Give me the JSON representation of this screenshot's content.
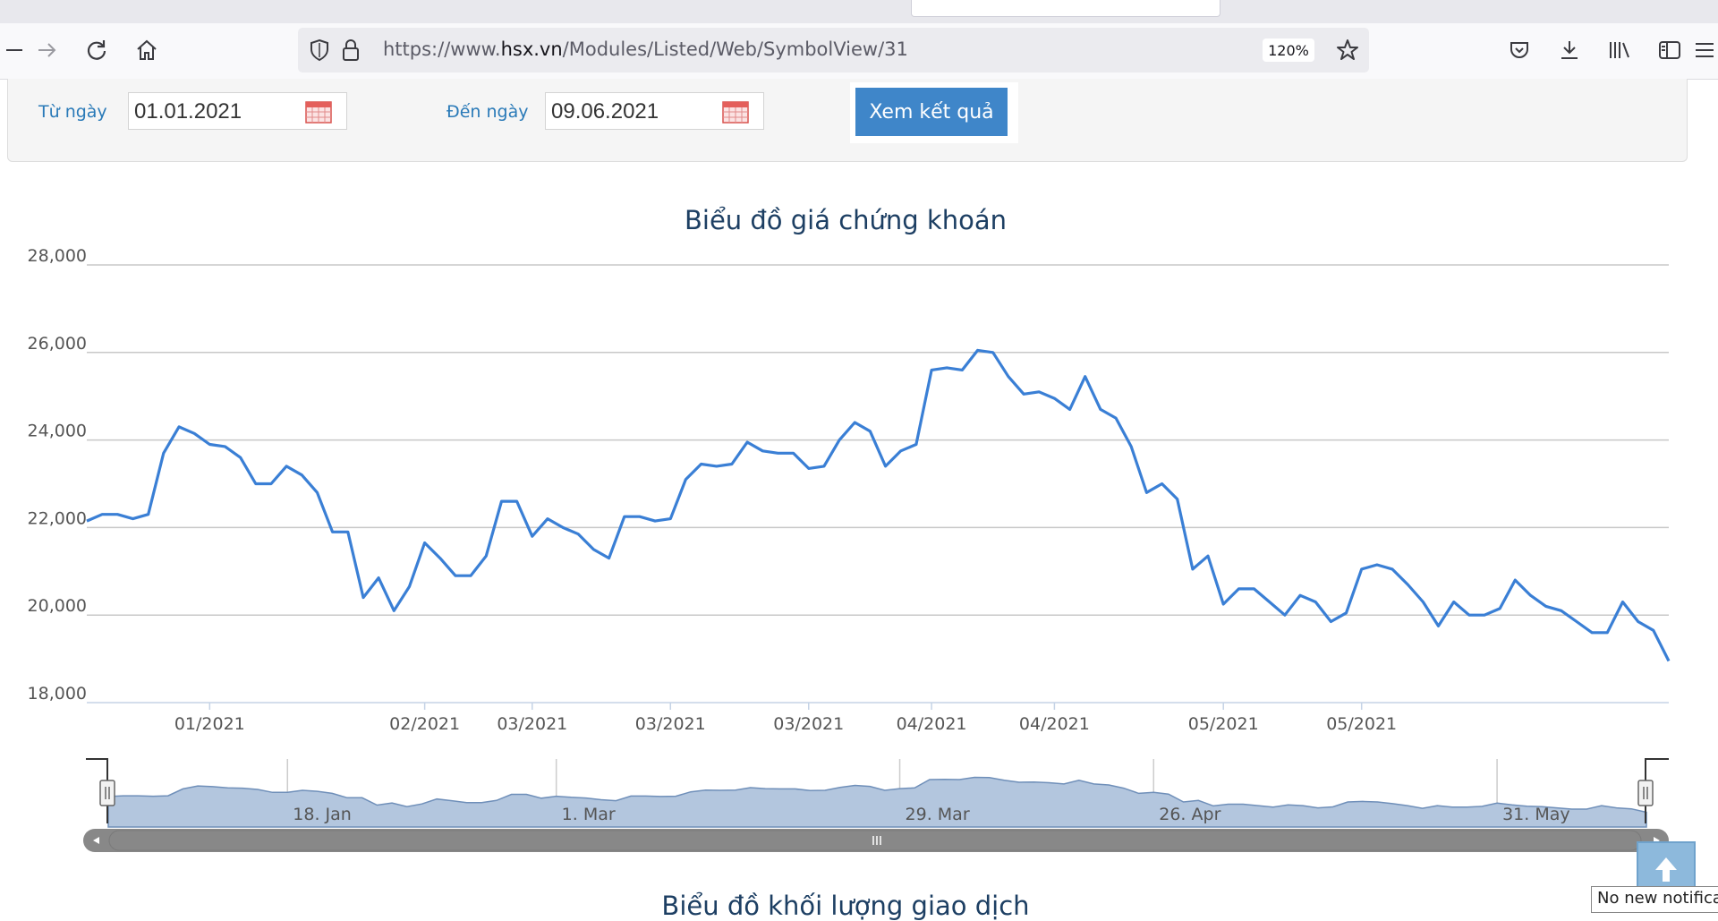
{
  "browser": {
    "url_prefix": "https://www.",
    "url_domain": "hsx.vn",
    "url_path": "/Modules/Listed/Web/SymbolView/31",
    "zoom": "120%",
    "icons": {
      "back": "arrow-left-icon",
      "forward": "arrow-right-icon",
      "reload": "reload-icon",
      "home": "home-icon",
      "shield": "shield-icon",
      "lock": "lock-icon",
      "bookmark": "star-icon",
      "pocket": "pocket-icon",
      "download": "download-icon",
      "library": "library-icon",
      "sidebar": "sidebar-icon"
    }
  },
  "filter": {
    "from_label": "Từ ngày",
    "from_value": "01.01.2021",
    "to_label": "Đến ngày",
    "to_value": "09.06.2021",
    "submit_label": "Xem kết quả"
  },
  "chart_data": {
    "type": "line",
    "title": "Biểu đồ giá chứng khoán",
    "y_ticks": [
      "18,000",
      "20,000",
      "22,000",
      "24,000",
      "26,000",
      "28,000"
    ],
    "ylim": [
      18000,
      28000
    ],
    "x_tick_labels": [
      "01/2021",
      "02/2021",
      "03/2021",
      "03/2021",
      "03/2021",
      "04/2021",
      "04/2021",
      "05/2021",
      "05/2021"
    ],
    "grid": true,
    "legend": "none",
    "line_color": "#3a7fd5",
    "series": [
      {
        "values": [
          22150,
          22300,
          22300,
          22200,
          22300,
          23700,
          24300,
          24150,
          23900,
          23850,
          23600,
          23000,
          23000,
          23400,
          23200,
          22800,
          21900,
          21900,
          20400,
          20850,
          20100,
          20650,
          21650,
          21300,
          20900,
          20900,
          21350,
          22600,
          22600,
          21800,
          22200,
          22000,
          21850,
          21500,
          21300,
          22250,
          22250,
          22150,
          22200,
          23100,
          23450,
          23400,
          23450,
          23950,
          23750,
          23700,
          23700,
          23350,
          23400,
          24000,
          24400,
          24200,
          23400,
          23750,
          23900,
          25600,
          25650,
          25600,
          26050,
          26000,
          25450,
          25050,
          25100,
          24950,
          24700,
          25450,
          24700,
          24500,
          23850,
          22800,
          23000,
          22650,
          21050,
          21350,
          20250,
          20600,
          20600,
          20300,
          20000,
          20450,
          20300,
          19850,
          20050,
          21050,
          21150,
          21050,
          20700,
          20300,
          19750,
          20300,
          20000,
          20000,
          20150,
          20800,
          20450,
          20200,
          20100,
          19850,
          19600,
          19600,
          20300,
          19850,
          19650,
          18950
        ]
      }
    ],
    "navigator": {
      "labels": [
        "18. Jan",
        "1. Mar",
        "29. Mar",
        "26. Apr",
        "31. May"
      ],
      "scrollbar_icon": "grip-icon"
    }
  },
  "scroll_top_icon": "arrow-up-icon",
  "notification": "No new notifications",
  "volume_title": "Biểu đồ khối lượng giao dịch"
}
